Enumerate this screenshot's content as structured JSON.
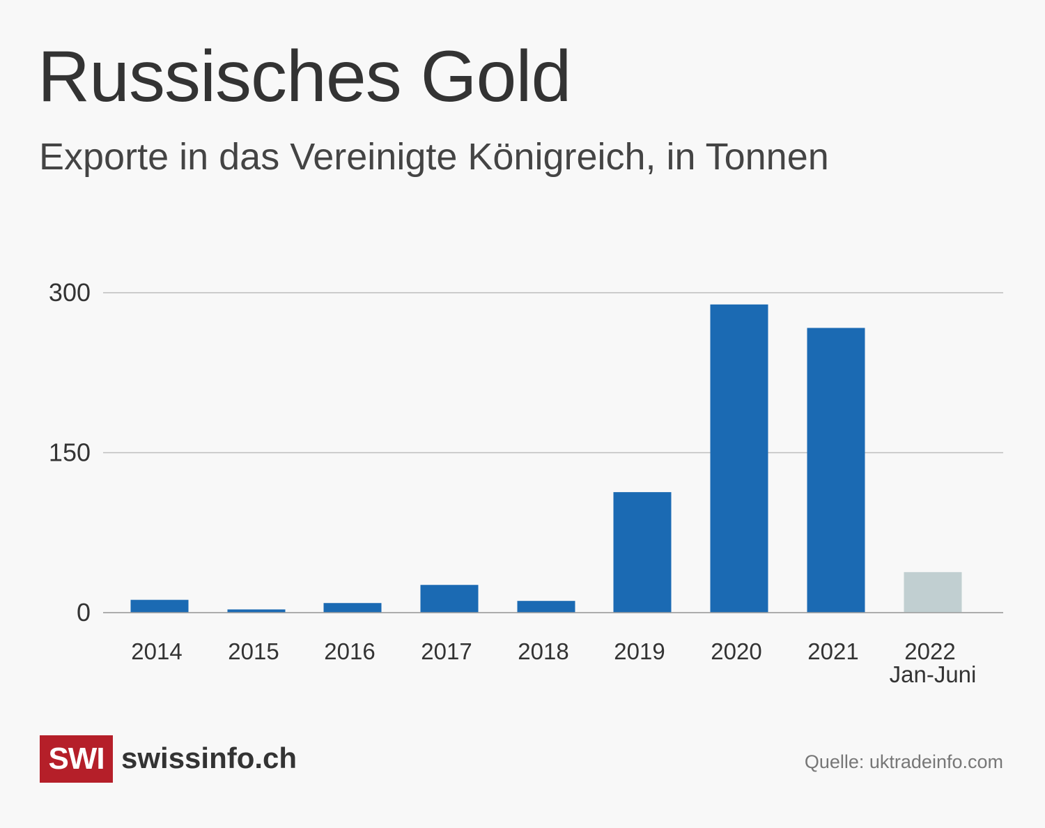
{
  "header": {
    "title": "Russisches Gold",
    "subtitle": "Exporte in das Vereinigte Königreich, in Tonnen"
  },
  "footer": {
    "logo_mark": "SWI",
    "logo_text": "swissinfo.ch",
    "source": "Quelle: uktradeinfo.com"
  },
  "colors": {
    "bar": "#1b6ab3",
    "bar_partial": "#c1cfd1",
    "grid": "#bdbdbd",
    "logo_bg": "#b51f29"
  },
  "chart_data": {
    "type": "bar",
    "title": "Russisches Gold",
    "subtitle": "Exporte in das Vereinigte Königreich, in Tonnen",
    "xlabel": "",
    "ylabel": "Tonnen",
    "ylim": [
      0,
      300
    ],
    "yticks": [
      0,
      150,
      300
    ],
    "grid": true,
    "categories": [
      "2014",
      "2015",
      "2016",
      "2017",
      "2018",
      "2019",
      "2020",
      "2021",
      "2022"
    ],
    "category_sublabels": [
      "",
      "",
      "",
      "",
      "",
      "",
      "",
      "",
      "Jan-Juni"
    ],
    "values": [
      12,
      3,
      9,
      26,
      11,
      113,
      289,
      267,
      38
    ],
    "highlight": [
      "normal",
      "normal",
      "normal",
      "normal",
      "normal",
      "normal",
      "normal",
      "normal",
      "partial"
    ]
  }
}
